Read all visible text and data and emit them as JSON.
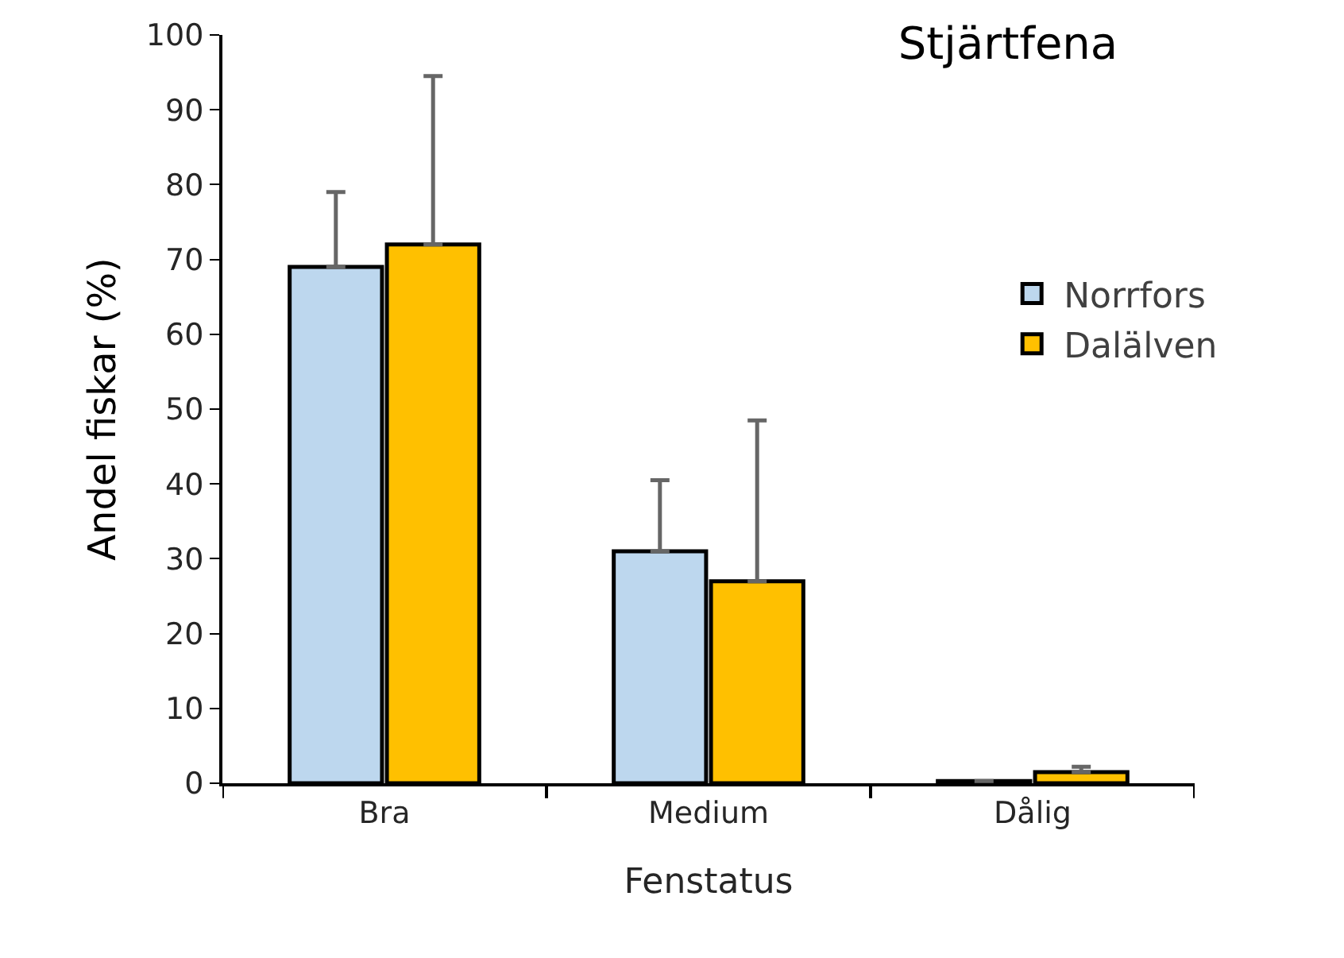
{
  "chart_data": {
    "type": "bar",
    "title": "Stjärtfena",
    "xlabel": "Fenstatus",
    "ylabel": "Andel fiskar (%)",
    "categories": [
      "Bra",
      "Medium",
      "Dålig"
    ],
    "series": [
      {
        "name": "Norrfors",
        "color": "#bdd7ee",
        "values": [
          69,
          31,
          0.3
        ],
        "errors": [
          [
            69,
            79
          ],
          [
            31,
            40.5
          ],
          null
        ]
      },
      {
        "name": "Dalälven",
        "color": "#ffc000",
        "values": [
          72,
          27,
          1.5
        ],
        "errors": [
          [
            72,
            94.5
          ],
          [
            27,
            48.5
          ],
          [
            1.5,
            2.2
          ]
        ]
      }
    ],
    "ylim": [
      0,
      100
    ],
    "yticks": [
      0,
      10,
      20,
      30,
      40,
      50,
      60,
      70,
      80,
      90,
      100
    ],
    "legend": "right"
  }
}
